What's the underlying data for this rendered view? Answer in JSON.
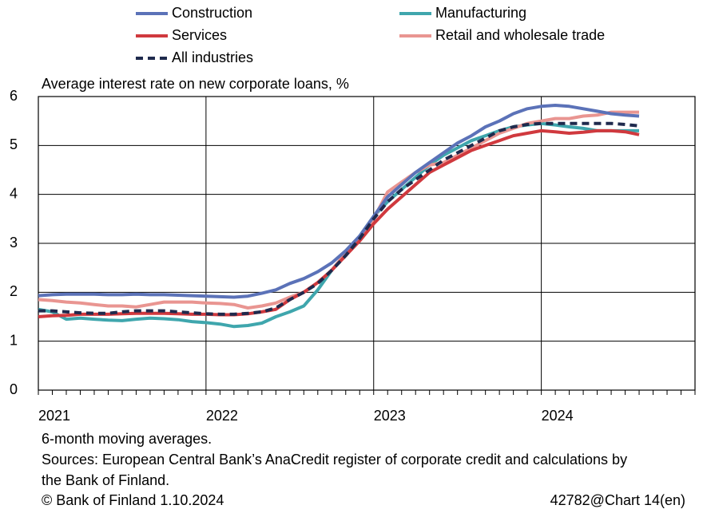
{
  "chart_data": {
    "type": "line",
    "axis_title": "Average interest rate on new corporate loans, %",
    "categories": [
      "2021",
      null,
      null,
      null,
      null,
      null,
      null,
      null,
      null,
      null,
      null,
      null,
      "2022",
      null,
      null,
      null,
      null,
      null,
      null,
      null,
      null,
      null,
      null,
      null,
      "2023",
      null,
      null,
      null,
      null,
      null,
      null,
      null,
      null,
      null,
      null,
      null,
      "2024",
      null,
      null,
      null,
      null,
      null,
      null,
      null,
      null,
      null,
      null,
      null
    ],
    "series": [
      {
        "name": "Construction",
        "color": "#5b72b8",
        "values": [
          1.93,
          1.95,
          1.96,
          1.96,
          1.96,
          1.95,
          1.95,
          1.96,
          1.95,
          1.95,
          1.94,
          1.93,
          1.92,
          1.91,
          1.9,
          1.92,
          1.98,
          2.05,
          2.18,
          2.28,
          2.42,
          2.6,
          2.85,
          3.15,
          3.55,
          3.95,
          4.2,
          4.45,
          4.65,
          4.85,
          5.05,
          5.2,
          5.38,
          5.5,
          5.65,
          5.75,
          5.8,
          5.82,
          5.8,
          5.75,
          5.7,
          5.65,
          5.62,
          5.6,
          null,
          null,
          null,
          null
        ]
      },
      {
        "name": "Manufacturing",
        "color": "#3fa6ad",
        "values": [
          1.65,
          1.6,
          1.45,
          1.47,
          1.45,
          1.43,
          1.42,
          1.45,
          1.47,
          1.46,
          1.44,
          1.4,
          1.38,
          1.35,
          1.3,
          1.32,
          1.37,
          1.5,
          1.6,
          1.72,
          2.05,
          2.45,
          2.8,
          3.15,
          3.55,
          3.85,
          4.1,
          4.35,
          4.6,
          4.8,
          4.95,
          5.1,
          5.2,
          5.3,
          5.38,
          5.42,
          5.45,
          5.42,
          5.38,
          5.35,
          5.3,
          5.3,
          5.3,
          5.3,
          null,
          null,
          null,
          null
        ]
      },
      {
        "name": "Services",
        "color": "#d0393e",
        "values": [
          1.5,
          1.52,
          1.53,
          1.55,
          1.55,
          1.55,
          1.56,
          1.57,
          1.57,
          1.57,
          1.56,
          1.55,
          1.55,
          1.54,
          1.54,
          1.56,
          1.6,
          1.65,
          1.85,
          2.0,
          2.2,
          2.45,
          2.75,
          3.05,
          3.4,
          3.7,
          3.95,
          4.2,
          4.45,
          4.6,
          4.75,
          4.9,
          5.0,
          5.1,
          5.2,
          5.25,
          5.3,
          5.28,
          5.25,
          5.27,
          5.3,
          5.3,
          5.28,
          5.22,
          null,
          null,
          null,
          null
        ]
      },
      {
        "name": "Retail and wholesale trade",
        "color": "#e99591",
        "values": [
          1.85,
          1.83,
          1.8,
          1.78,
          1.75,
          1.72,
          1.72,
          1.7,
          1.75,
          1.8,
          1.8,
          1.8,
          1.78,
          1.77,
          1.75,
          1.68,
          1.72,
          1.78,
          1.9,
          2.0,
          2.2,
          2.45,
          2.8,
          3.1,
          3.5,
          4.05,
          4.25,
          4.45,
          4.6,
          4.65,
          4.8,
          4.95,
          5.1,
          5.25,
          5.35,
          5.45,
          5.5,
          5.55,
          5.55,
          5.6,
          5.62,
          5.68,
          5.68,
          5.68,
          null,
          null,
          null,
          null
        ]
      },
      {
        "name": "All industries",
        "color": "#1f2a4d",
        "dashed": true,
        "values": [
          1.62,
          1.62,
          1.6,
          1.58,
          1.57,
          1.57,
          1.6,
          1.62,
          1.62,
          1.62,
          1.6,
          1.58,
          1.56,
          1.55,
          1.55,
          1.57,
          1.6,
          1.68,
          1.85,
          2.0,
          2.18,
          2.45,
          2.75,
          3.1,
          3.5,
          3.85,
          4.1,
          4.3,
          4.5,
          4.7,
          4.85,
          5.0,
          5.15,
          5.3,
          5.38,
          5.43,
          5.45,
          5.45,
          5.45,
          5.45,
          5.45,
          5.45,
          5.43,
          5.4,
          null,
          null,
          null,
          null
        ]
      }
    ],
    "ylim": [
      0,
      6
    ],
    "yticks": [
      0,
      1,
      2,
      3,
      4,
      5,
      6
    ],
    "grid": true,
    "notes": [
      "6-month moving averages.",
      "Sources: European Central Bank’s AnaCredit register of corporate credit and calculations by",
      "the Bank of Finland."
    ],
    "copyright": "© Bank of Finland 1.10.2024",
    "chart_id": "42782@Chart 14(en)"
  }
}
